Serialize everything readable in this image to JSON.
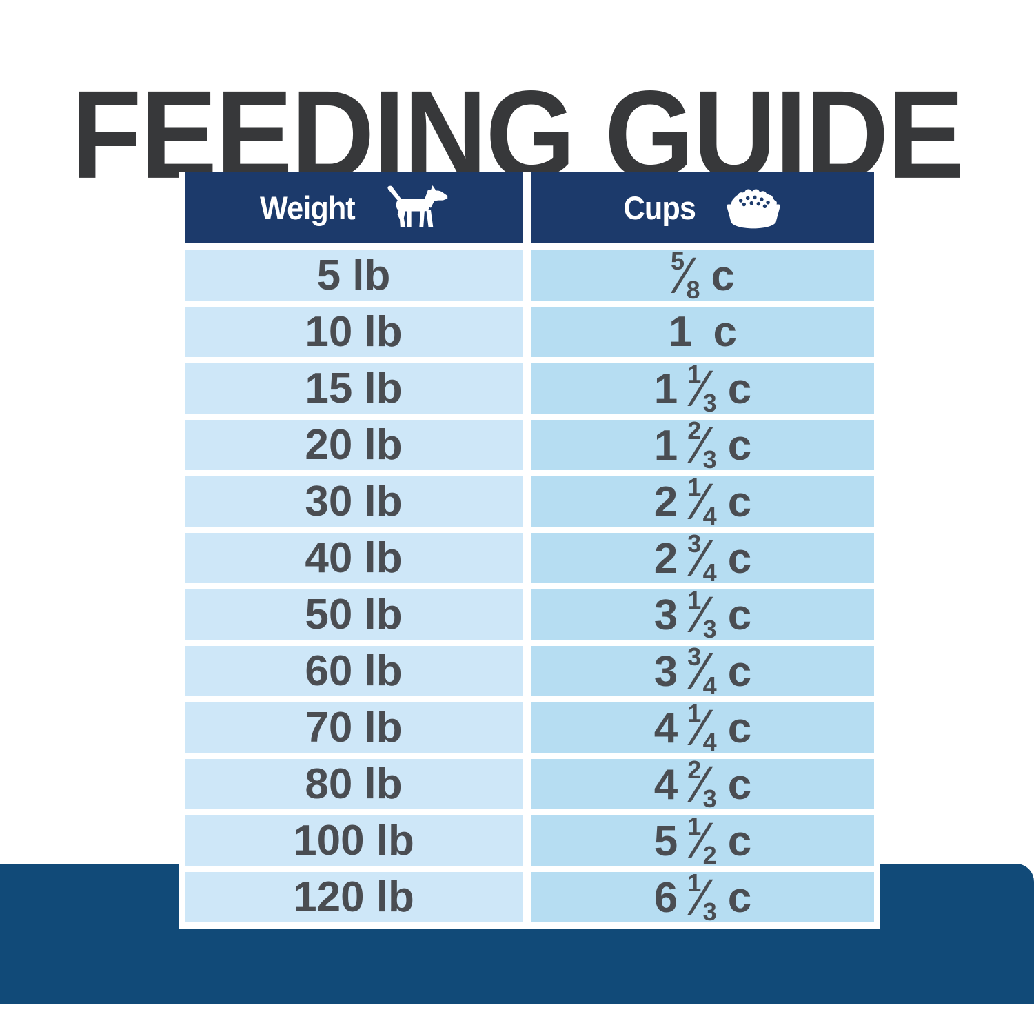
{
  "title": "FEEDING GUIDE",
  "fraction_slash": "⁄",
  "colors": {
    "title_ink": "#37383a",
    "ink": "#4a4d52",
    "header_navy": "#1c3a6b",
    "band_blue": "#114a78",
    "row_light": "#cee7f8",
    "row_mid": "#b6ddf2",
    "white": "#ffffff"
  },
  "table": {
    "header": {
      "weight_label": "Weight",
      "cups_label": "Cups",
      "weight_icon": "dog-icon",
      "cups_icon": "dog-bowl-icon"
    },
    "rows": [
      {
        "weight": "5 lb",
        "cups": {
          "whole": "",
          "num": "5",
          "den": "8",
          "unit": "c"
        }
      },
      {
        "weight": "10 lb",
        "cups": {
          "whole": "1",
          "num": "",
          "den": "",
          "unit": "c"
        }
      },
      {
        "weight": "15 lb",
        "cups": {
          "whole": "1",
          "num": "1",
          "den": "3",
          "unit": "c"
        }
      },
      {
        "weight": "20 lb",
        "cups": {
          "whole": "1",
          "num": "2",
          "den": "3",
          "unit": "c"
        }
      },
      {
        "weight": "30 lb",
        "cups": {
          "whole": "2",
          "num": "1",
          "den": "4",
          "unit": "c"
        }
      },
      {
        "weight": "40 lb",
        "cups": {
          "whole": "2",
          "num": "3",
          "den": "4",
          "unit": "c"
        }
      },
      {
        "weight": "50 lb",
        "cups": {
          "whole": "3",
          "num": "1",
          "den": "3",
          "unit": "c"
        }
      },
      {
        "weight": "60 lb",
        "cups": {
          "whole": "3",
          "num": "3",
          "den": "4",
          "unit": "c"
        }
      },
      {
        "weight": "70 lb",
        "cups": {
          "whole": "4",
          "num": "1",
          "den": "4",
          "unit": "c"
        }
      },
      {
        "weight": "80 lb",
        "cups": {
          "whole": "4",
          "num": "2",
          "den": "3",
          "unit": "c"
        }
      },
      {
        "weight": "100 lb",
        "cups": {
          "whole": "5",
          "num": "1",
          "den": "2",
          "unit": "c"
        }
      },
      {
        "weight": "120 lb",
        "cups": {
          "whole": "6",
          "num": "1",
          "den": "3",
          "unit": "c"
        }
      }
    ]
  }
}
